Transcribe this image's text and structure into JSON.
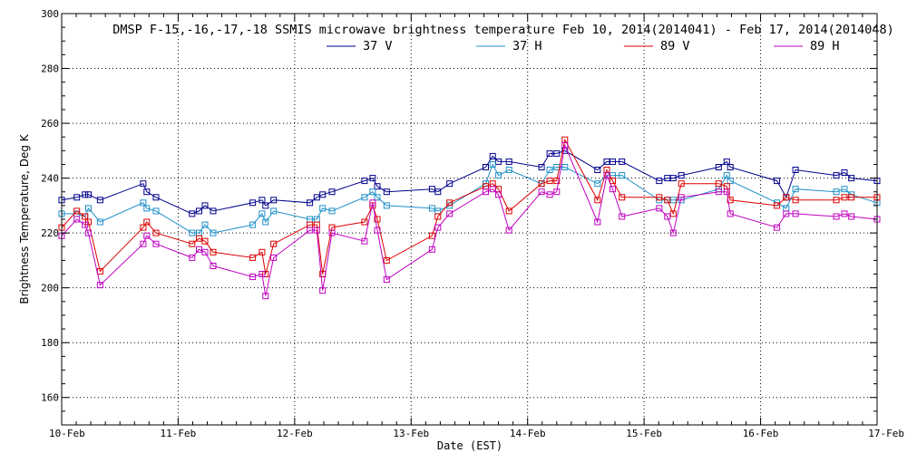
{
  "chart_data": {
    "type": "line",
    "title": "DMSP F-15,-16,-17,-18 SSMIS microwave brightness temperature Feb 10, 2014(2014041) - Feb 17, 2014(2014048)",
    "xlabel": "Date (EST)",
    "ylabel": "Brightness Temperature, Deg K",
    "xlim": [
      0,
      7
    ],
    "ylim": [
      150,
      300
    ],
    "x_ticks": [
      {
        "value": 0,
        "label": "10-Feb"
      },
      {
        "value": 1,
        "label": "11-Feb"
      },
      {
        "value": 2,
        "label": "12-Feb"
      },
      {
        "value": 3,
        "label": "13-Feb"
      },
      {
        "value": 4,
        "label": "14-Feb"
      },
      {
        "value": 5,
        "label": "15-Feb"
      },
      {
        "value": 6,
        "label": "16-Feb"
      },
      {
        "value": 7,
        "label": "17-Feb"
      }
    ],
    "y_ticks": [
      160,
      180,
      200,
      220,
      240,
      260,
      280,
      300
    ],
    "grid": true,
    "legend_position": "top-center",
    "series": [
      {
        "name": "37 V",
        "color": "#00008b",
        "points": [
          [
            0.0,
            232
          ],
          [
            0.13,
            233
          ],
          [
            0.2,
            234
          ],
          [
            0.23,
            234
          ],
          [
            0.33,
            232
          ],
          [
            0.7,
            238
          ],
          [
            0.73,
            235
          ],
          [
            0.81,
            233
          ],
          [
            1.12,
            227
          ],
          [
            1.18,
            228
          ],
          [
            1.23,
            230
          ],
          [
            1.3,
            228
          ],
          [
            1.64,
            231
          ],
          [
            1.72,
            232
          ],
          [
            1.75,
            230
          ],
          [
            1.82,
            232
          ],
          [
            2.13,
            231
          ],
          [
            2.19,
            233
          ],
          [
            2.24,
            234
          ],
          [
            2.32,
            235
          ],
          [
            2.6,
            239
          ],
          [
            2.67,
            240
          ],
          [
            2.71,
            237
          ],
          [
            2.79,
            235
          ],
          [
            3.18,
            236
          ],
          [
            3.23,
            235
          ],
          [
            3.33,
            238
          ],
          [
            3.64,
            244
          ],
          [
            3.7,
            248
          ],
          [
            3.75,
            246
          ],
          [
            3.84,
            246
          ],
          [
            4.12,
            244
          ],
          [
            4.19,
            249
          ],
          [
            4.25,
            249
          ],
          [
            4.32,
            250
          ],
          [
            4.6,
            243
          ],
          [
            4.68,
            246
          ],
          [
            4.73,
            246
          ],
          [
            4.81,
            246
          ],
          [
            5.13,
            239
          ],
          [
            5.2,
            240
          ],
          [
            5.25,
            240
          ],
          [
            5.32,
            241
          ],
          [
            5.64,
            244
          ],
          [
            5.71,
            246
          ],
          [
            5.74,
            244
          ],
          [
            6.14,
            239
          ],
          [
            6.22,
            233
          ],
          [
            6.3,
            243
          ],
          [
            6.65,
            241
          ],
          [
            6.72,
            242
          ],
          [
            6.78,
            240
          ],
          [
            7.0,
            239
          ]
        ]
      },
      {
        "name": "37 H",
        "color": "#1e90c8",
        "points": [
          [
            0.0,
            227
          ],
          [
            0.13,
            227
          ],
          [
            0.2,
            226
          ],
          [
            0.23,
            229
          ],
          [
            0.33,
            224
          ],
          [
            0.7,
            231
          ],
          [
            0.73,
            229
          ],
          [
            0.81,
            228
          ],
          [
            1.12,
            220
          ],
          [
            1.18,
            220
          ],
          [
            1.23,
            223
          ],
          [
            1.3,
            220
          ],
          [
            1.64,
            223
          ],
          [
            1.72,
            227
          ],
          [
            1.75,
            224
          ],
          [
            1.82,
            228
          ],
          [
            2.13,
            225
          ],
          [
            2.19,
            225
          ],
          [
            2.24,
            229
          ],
          [
            2.32,
            228
          ],
          [
            2.6,
            233
          ],
          [
            2.67,
            235
          ],
          [
            2.71,
            233
          ],
          [
            2.79,
            230
          ],
          [
            3.18,
            229
          ],
          [
            3.23,
            228
          ],
          [
            3.33,
            230
          ],
          [
            3.64,
            238
          ],
          [
            3.7,
            245
          ],
          [
            3.75,
            241
          ],
          [
            3.84,
            243
          ],
          [
            4.12,
            238
          ],
          [
            4.19,
            243
          ],
          [
            4.25,
            244
          ],
          [
            4.32,
            244
          ],
          [
            4.6,
            238
          ],
          [
            4.68,
            241
          ],
          [
            4.73,
            241
          ],
          [
            4.81,
            241
          ],
          [
            5.13,
            232
          ],
          [
            5.2,
            232
          ],
          [
            5.25,
            232
          ],
          [
            5.32,
            232
          ],
          [
            5.64,
            236
          ],
          [
            5.71,
            241
          ],
          [
            5.74,
            239
          ],
          [
            6.14,
            231
          ],
          [
            6.22,
            229
          ],
          [
            6.3,
            236
          ],
          [
            6.65,
            235
          ],
          [
            6.72,
            236
          ],
          [
            6.78,
            234
          ],
          [
            7.0,
            231
          ]
        ]
      },
      {
        "name": "89 V",
        "color": "#dd0000",
        "points": [
          [
            0.0,
            222
          ],
          [
            0.13,
            228
          ],
          [
            0.2,
            226
          ],
          [
            0.23,
            224
          ],
          [
            0.33,
            206
          ],
          [
            0.7,
            222
          ],
          [
            0.73,
            224
          ],
          [
            0.81,
            220
          ],
          [
            1.12,
            216
          ],
          [
            1.18,
            218
          ],
          [
            1.23,
            217
          ],
          [
            1.3,
            213
          ],
          [
            1.64,
            211
          ],
          [
            1.72,
            213
          ],
          [
            1.75,
            205
          ],
          [
            1.82,
            216
          ],
          [
            2.13,
            223
          ],
          [
            2.19,
            223
          ],
          [
            2.24,
            205
          ],
          [
            2.32,
            222
          ],
          [
            2.6,
            224
          ],
          [
            2.67,
            230
          ],
          [
            2.71,
            225
          ],
          [
            2.79,
            210
          ],
          [
            3.18,
            219
          ],
          [
            3.23,
            226
          ],
          [
            3.33,
            231
          ],
          [
            3.64,
            237
          ],
          [
            3.7,
            238
          ],
          [
            3.75,
            236
          ],
          [
            3.84,
            228
          ],
          [
            4.12,
            238
          ],
          [
            4.19,
            239
          ],
          [
            4.25,
            239
          ],
          [
            4.32,
            254
          ],
          [
            4.6,
            232
          ],
          [
            4.68,
            243
          ],
          [
            4.73,
            239
          ],
          [
            4.81,
            233
          ],
          [
            5.13,
            233
          ],
          [
            5.2,
            232
          ],
          [
            5.25,
            227
          ],
          [
            5.32,
            238
          ],
          [
            5.64,
            238
          ],
          [
            5.71,
            237
          ],
          [
            5.74,
            232
          ],
          [
            6.14,
            230
          ],
          [
            6.22,
            233
          ],
          [
            6.3,
            232
          ],
          [
            6.65,
            232
          ],
          [
            6.72,
            233
          ],
          [
            6.78,
            233
          ],
          [
            7.0,
            233
          ]
        ]
      },
      {
        "name": "89 H",
        "color": "#c000c0",
        "points": [
          [
            0.0,
            219
          ],
          [
            0.13,
            225
          ],
          [
            0.2,
            223
          ],
          [
            0.23,
            220
          ],
          [
            0.33,
            201
          ],
          [
            0.7,
            216
          ],
          [
            0.73,
            219
          ],
          [
            0.81,
            216
          ],
          [
            1.12,
            211
          ],
          [
            1.18,
            214
          ],
          [
            1.23,
            213
          ],
          [
            1.3,
            208
          ],
          [
            1.64,
            204
          ],
          [
            1.72,
            205
          ],
          [
            1.75,
            197
          ],
          [
            1.82,
            211
          ],
          [
            2.13,
            221
          ],
          [
            2.19,
            221
          ],
          [
            2.24,
            199
          ],
          [
            2.32,
            220
          ],
          [
            2.6,
            217
          ],
          [
            2.67,
            231
          ],
          [
            2.71,
            221
          ],
          [
            2.79,
            203
          ],
          [
            3.18,
            214
          ],
          [
            3.23,
            222
          ],
          [
            3.33,
            227
          ],
          [
            3.64,
            235
          ],
          [
            3.7,
            236
          ],
          [
            3.75,
            234
          ],
          [
            3.84,
            221
          ],
          [
            4.12,
            235
          ],
          [
            4.19,
            234
          ],
          [
            4.25,
            235
          ],
          [
            4.32,
            252
          ],
          [
            4.6,
            224
          ],
          [
            4.68,
            241
          ],
          [
            4.73,
            236
          ],
          [
            4.81,
            226
          ],
          [
            5.13,
            229
          ],
          [
            5.2,
            226
          ],
          [
            5.25,
            220
          ],
          [
            5.32,
            233
          ],
          [
            5.64,
            235
          ],
          [
            5.71,
            235
          ],
          [
            5.74,
            227
          ],
          [
            6.14,
            222
          ],
          [
            6.22,
            227
          ],
          [
            6.3,
            227
          ],
          [
            6.65,
            226
          ],
          [
            6.72,
            227
          ],
          [
            6.78,
            226
          ],
          [
            7.0,
            225
          ]
        ]
      }
    ]
  }
}
